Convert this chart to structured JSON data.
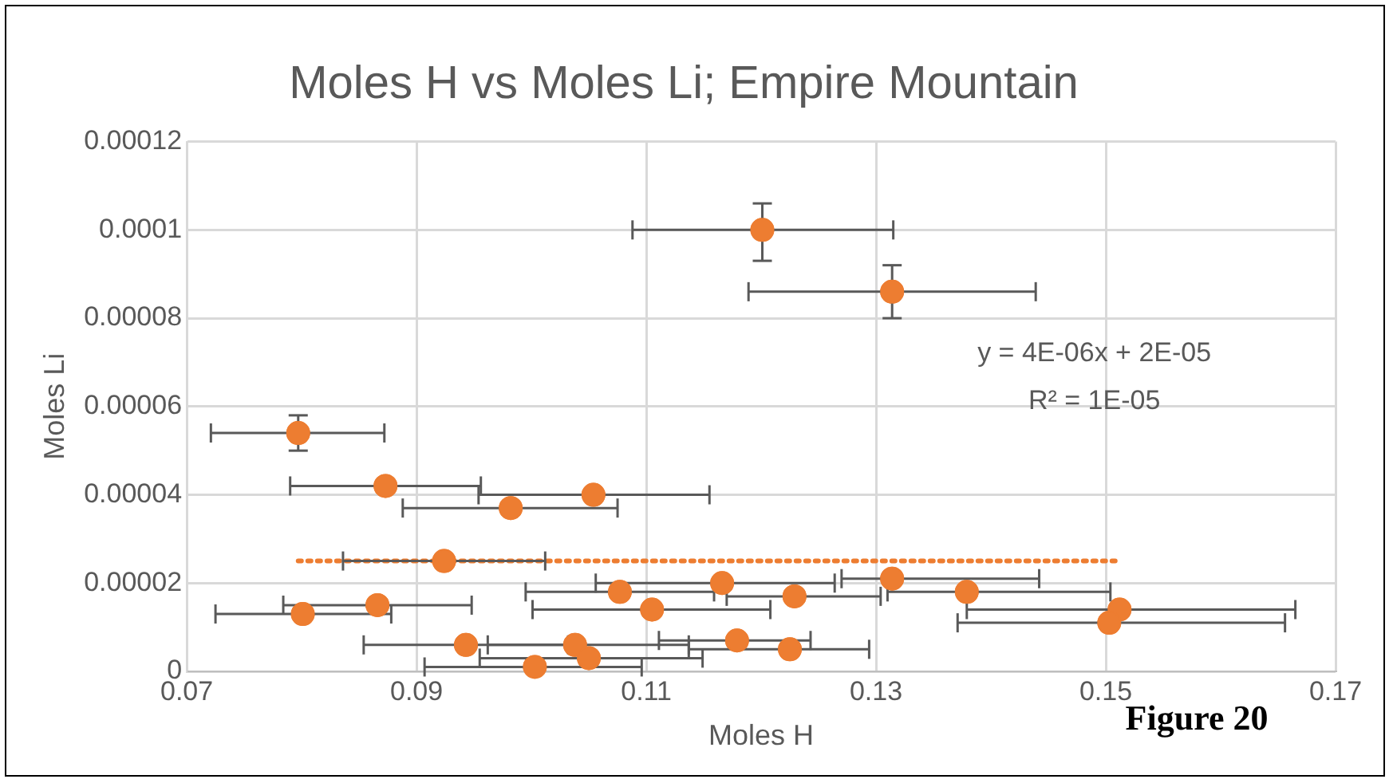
{
  "chart_data": {
    "type": "scatter",
    "title": "Moles H vs Moles Li; Empire Mountain",
    "xlabel": "Moles H",
    "ylabel": "Moles Li",
    "xlim": [
      0.07,
      0.17
    ],
    "xticks": [
      0.07,
      0.09,
      0.11,
      0.13,
      0.15,
      0.17
    ],
    "ylim": [
      0,
      0.00012
    ],
    "yticks": [
      0,
      {
        "value": 2e-05,
        "label": "0.00002"
      },
      {
        "value": 4e-05,
        "label": "0.00004"
      },
      {
        "value": 6e-05,
        "label": "0.00006"
      },
      {
        "value": 8e-05,
        "label": "0.00008"
      },
      {
        "value": 0.0001,
        "label": "0.0001"
      },
      {
        "value": 0.00012,
        "label": "0.00012"
      }
    ],
    "grid": true,
    "legend": false,
    "marker": "circle",
    "series": [
      {
        "type": "scatter",
        "color": "#ed7d31",
        "x": [
          0.0797,
          0.0873,
          0.0982,
          0.1054,
          0.0924,
          0.0801,
          0.0866,
          0.1077,
          0.1105,
          0.1166,
          0.0943,
          0.1038,
          0.105,
          0.1003,
          0.1179,
          0.1201,
          0.1314,
          0.1229,
          0.1314,
          0.1379,
          0.1512,
          0.1503,
          0.1225
        ],
        "values": [
          5.4e-05,
          4.2e-05,
          3.7e-05,
          4e-05,
          2.5e-05,
          1.3e-05,
          1.5e-05,
          1.8e-05,
          1.4e-05,
          2e-05,
          6e-06,
          6e-06,
          3e-06,
          1e-06,
          7e-06,
          0.0001,
          8.6e-05,
          1.7e-05,
          2.1e-05,
          1.8e-05,
          1.4e-05,
          1.1e-05,
          5e-06
        ],
        "errors": [
          [
            5e-05,
            5.8e-05
          ],
          null,
          null,
          null,
          null,
          null,
          null,
          null,
          null,
          null,
          null,
          null,
          null,
          null,
          null,
          [
            9.3e-05,
            0.000106
          ],
          [
            8e-05,
            9.2e-05
          ],
          null,
          null,
          null,
          null,
          null,
          null
        ],
        "xerrors": [
          [
            0.0721,
            0.0872
          ],
          [
            0.079,
            0.0956
          ],
          [
            0.0888,
            0.1075
          ],
          [
            0.0954,
            0.1155
          ],
          [
            0.0836,
            0.1012
          ],
          [
            0.0725,
            0.0878
          ],
          [
            0.0784,
            0.0948
          ],
          [
            0.0995,
            0.1159
          ],
          [
            0.1001,
            0.1208
          ],
          [
            0.1056,
            0.1264
          ],
          [
            0.0854,
            0.1032
          ],
          [
            0.0962,
            0.1137
          ],
          [
            0.0955,
            0.1149
          ],
          [
            0.0907,
            0.1096
          ],
          [
            0.1111,
            0.1243
          ],
          [
            0.1088,
            0.1315
          ],
          [
            0.1189,
            0.1439
          ],
          [
            0.117,
            0.1304
          ],
          [
            0.127,
            0.1442
          ],
          [
            0.131,
            0.1504
          ],
          [
            0.1379,
            0.1665
          ],
          [
            0.1371,
            0.1656
          ],
          [
            0.1137,
            0.1294
          ]
        ]
      },
      {
        "type": "line",
        "color": "#ed7d31",
        "line_style": "dotted",
        "marker": "none",
        "x": [
          0.0797,
          0.1512
        ],
        "values": [
          2.5e-05,
          2.5e-05
        ]
      }
    ],
    "annotations": [
      "y = 4E-06x + 2E-05",
      "R² = 1E-05",
      "Figure 20"
    ]
  }
}
